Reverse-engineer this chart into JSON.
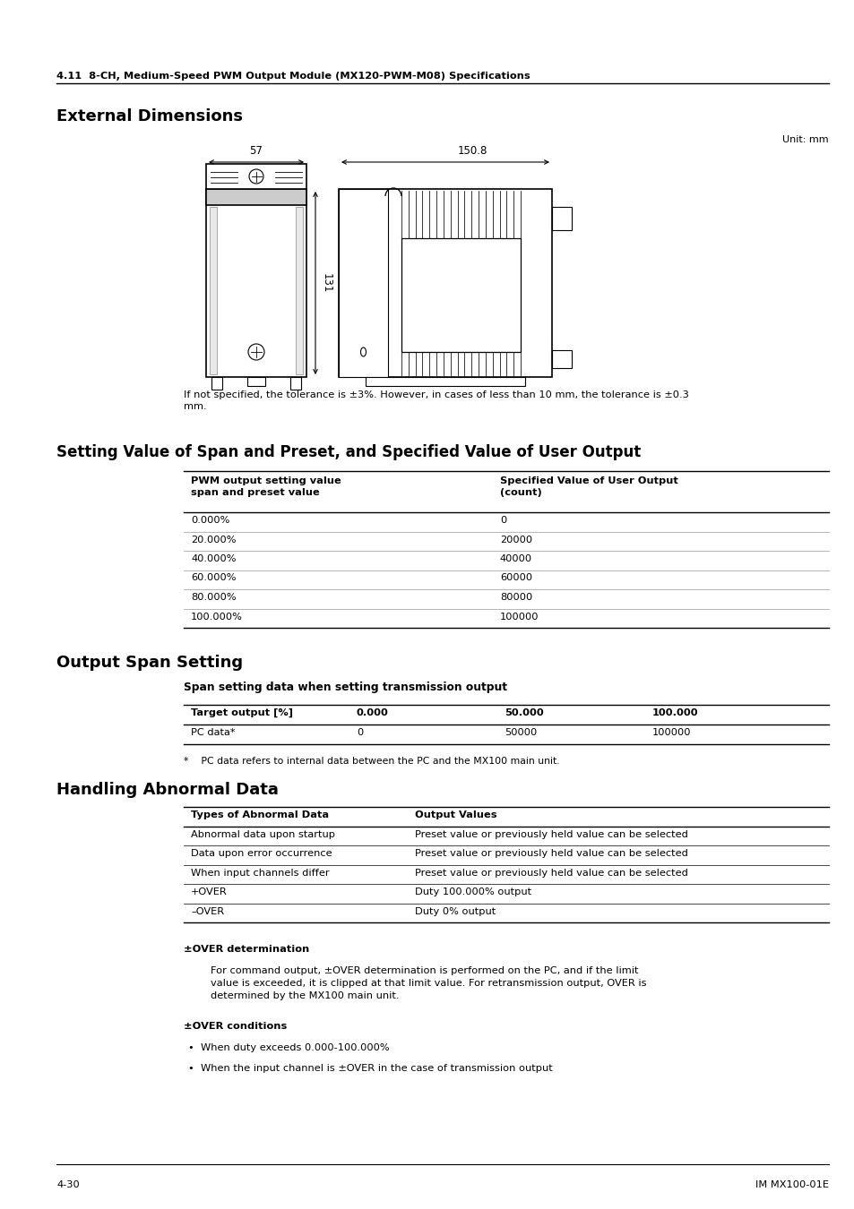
{
  "bg_color": "#ffffff",
  "page_width": 9.54,
  "page_height": 13.5,
  "header_line_text": "4.11  8-CH, Medium-Speed PWM Output Module (MX120-PWM-M08) Specifications",
  "section1_title": "External Dimensions",
  "unit_text": "Unit: mm",
  "dim_57": "57",
  "dim_1508": "150.8",
  "dim_131": "131",
  "tolerance_text": "If not specified, the tolerance is ±3%. However, in cases of less than 10 mm, the tolerance is ±0.3\nmm.",
  "section2_title": "Setting Value of Span and Preset, and Specified Value of User Output",
  "table1_headers": [
    "PWM output setting value\nspan and preset value",
    "Specified Value of User Output\n(count)"
  ],
  "table1_rows": [
    [
      "0.000%",
      "0"
    ],
    [
      "20.000%",
      "20000"
    ],
    [
      "40.000%",
      "40000"
    ],
    [
      "60.000%",
      "60000"
    ],
    [
      "80.000%",
      "80000"
    ],
    [
      "100.000%",
      "100000"
    ]
  ],
  "section3_title": "Output Span Setting",
  "table2_subtitle": "Span setting data when setting transmission output",
  "table2_headers": [
    "Target output [%]",
    "0.000",
    "50.000",
    "100.000"
  ],
  "table2_rows": [
    [
      "PC data*",
      "0",
      "50000",
      "100000"
    ]
  ],
  "table2_footnote": "*    PC data refers to internal data between the PC and the MX100 main unit.",
  "section4_title": "Handling Abnormal Data",
  "table3_headers": [
    "Types of Abnormal Data",
    "Output Values"
  ],
  "table3_rows": [
    [
      "Abnormal data upon startup",
      "Preset value or previously held value can be selected"
    ],
    [
      "Data upon error occurrence",
      "Preset value or previously held value can be selected"
    ],
    [
      "When input channels differ",
      "Preset value or previously held value can be selected"
    ],
    [
      "+OVER",
      "Duty 100.000% output"
    ],
    [
      "–OVER",
      "Duty 0% output"
    ]
  ],
  "over_det_title": "±OVER determination",
  "over_det_text": "For command output, ±OVER determination is performed on the PC, and if the limit\nvalue is exceeded, it is clipped at that limit value. For retransmission output, OVER is\ndetermined by the MX100 main unit.",
  "over_cond_title": "±OVER conditions",
  "over_cond_bullets": [
    "When duty exceeds 0.000-100.000%",
    "When the input channel is ±OVER in the case of transmission output"
  ],
  "footer_left": "4-30",
  "footer_right": "IM MX100-01E"
}
